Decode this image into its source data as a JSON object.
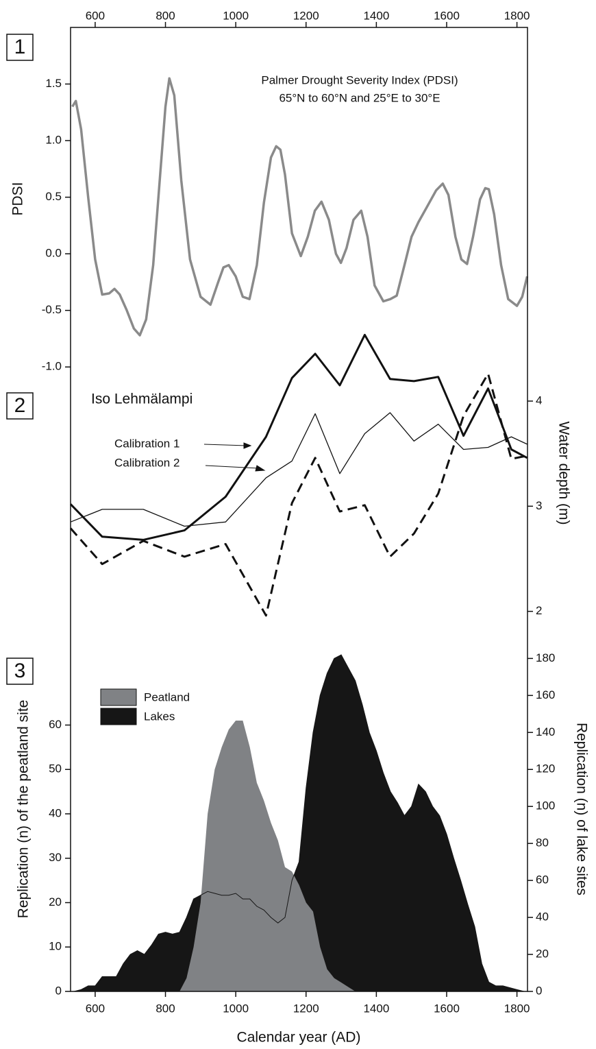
{
  "chart_data": [
    {
      "type": "line",
      "panel": "1",
      "title": [
        "Palmer Drought Severity Index (PDSI)",
        "65°N to 60°N and 25°E to 30°E"
      ],
      "ylabel": "PDSI",
      "color": "#8a8a8a",
      "linewidth": 3.5,
      "xaxis_position": "top",
      "xlim": [
        530,
        1830
      ],
      "xticks": [
        600,
        800,
        1000,
        1200,
        1400,
        1600,
        1800
      ],
      "ylim": [
        -1.15,
        2.0
      ],
      "yticks": [
        1.5,
        {
          "value": 1,
          "label": "1.0"
        },
        0.5,
        {
          "value": 0,
          "label": "0.0"
        },
        -0.5,
        {
          "value": -1,
          "label": "-1.0"
        }
      ],
      "x": [
        535,
        545,
        560,
        580,
        600,
        620,
        640,
        655,
        670,
        690,
        710,
        727,
        745,
        765,
        785,
        800,
        811,
        825,
        845,
        870,
        900,
        928,
        950,
        965,
        980,
        1000,
        1020,
        1039,
        1060,
        1080,
        1100,
        1115,
        1127,
        1140,
        1160,
        1185,
        1205,
        1225,
        1244,
        1265,
        1285,
        1299,
        1315,
        1335,
        1357,
        1375,
        1395,
        1420,
        1440,
        1458,
        1480,
        1500,
        1520,
        1545,
        1570,
        1589,
        1605,
        1625,
        1642,
        1658,
        1675,
        1695,
        1710,
        1720,
        1735,
        1755,
        1775,
        1800,
        1815,
        1829
      ],
      "values": [
        1.3,
        1.35,
        1.1,
        0.5,
        -0.05,
        -0.36,
        -0.35,
        -0.31,
        -0.36,
        -0.5,
        -0.66,
        -0.72,
        -0.58,
        -0.1,
        0.7,
        1.3,
        1.55,
        1.4,
        0.65,
        -0.05,
        -0.38,
        -0.45,
        -0.25,
        -0.12,
        -0.1,
        -0.2,
        -0.38,
        -0.4,
        -0.1,
        0.45,
        0.85,
        0.95,
        0.92,
        0.7,
        0.18,
        -0.02,
        0.15,
        0.38,
        0.46,
        0.3,
        0.0,
        -0.08,
        0.05,
        0.3,
        0.38,
        0.15,
        -0.28,
        -0.42,
        -0.4,
        -0.37,
        -0.1,
        0.15,
        0.28,
        0.42,
        0.56,
        0.62,
        0.52,
        0.15,
        -0.05,
        -0.09,
        0.15,
        0.48,
        0.58,
        0.57,
        0.35,
        -0.1,
        -0.4,
        -0.46,
        -0.38,
        -0.2
      ]
    },
    {
      "type": "line",
      "panel": "2",
      "title": "Iso Lehmälampi",
      "y2label": "Water depth (m)",
      "xlim": [
        530,
        1830
      ],
      "y2lim": [
        1.9,
        4.9
      ],
      "y2ticks": [
        2,
        3,
        4
      ],
      "x": [
        530,
        620,
        737,
        854,
        971,
        1086,
        1160,
        1226,
        1296,
        1367,
        1439,
        1507,
        1576,
        1648,
        1718,
        1784,
        1829
      ],
      "series": [
        {
          "name": "Calibration 1",
          "color": "#111111",
          "linewidth": 3,
          "axis": "y2",
          "values": [
            3.02,
            2.71,
            2.68,
            2.77,
            3.09,
            3.66,
            4.22,
            4.45,
            4.15,
            4.63,
            4.21,
            4.19,
            4.23,
            3.67,
            4.12,
            3.54,
            3.46
          ]
        },
        {
          "name": "Calibration 2",
          "color": "#111111",
          "linewidth": 1.3,
          "axis": "y2",
          "values": [
            2.85,
            2.97,
            2.97,
            2.81,
            2.85,
            3.27,
            3.43,
            3.88,
            3.31,
            3.69,
            3.89,
            3.62,
            3.78,
            3.54,
            3.56,
            3.66,
            3.59
          ]
        },
        {
          "color": "#111111",
          "linewidth": 3,
          "dash": true,
          "axis": "y2",
          "values": [
            2.79,
            2.45,
            2.67,
            2.52,
            2.64,
            1.96,
            3.03,
            3.46,
            2.95,
            3.01,
            2.52,
            2.74,
            3.12,
            3.86,
            4.26,
            3.45,
            3.48
          ]
        }
      ]
    },
    {
      "type": "area",
      "panel": "3",
      "xaxis_position": "bottom",
      "xlabel": "Calendar year (AD)",
      "ylabel": "Replication (n) of the peatland site",
      "y2label": "Replication (n) of lake sites",
      "xlim": [
        530,
        1830
      ],
      "xticks": [
        600,
        800,
        1000,
        1200,
        1400,
        1600,
        1800
      ],
      "ylim": [
        0,
        80
      ],
      "yticks": [
        0,
        10,
        20,
        30,
        40,
        50,
        60
      ],
      "y2lim": [
        0,
        192
      ],
      "y2ticks": [
        0,
        20,
        40,
        60,
        80,
        100,
        120,
        140,
        160,
        180
      ],
      "series": [
        {
          "name": "Lakes",
          "color": "#161616",
          "axis": "y2",
          "x": [
            540,
            560,
            580,
            600,
            620,
            640,
            660,
            680,
            700,
            720,
            740,
            760,
            780,
            800,
            820,
            840,
            860,
            880,
            900,
            920,
            940,
            960,
            980,
            1000,
            1020,
            1040,
            1060,
            1080,
            1100,
            1120,
            1140,
            1160,
            1180,
            1200,
            1220,
            1240,
            1260,
            1280,
            1300,
            1320,
            1340,
            1360,
            1380,
            1400,
            1420,
            1440,
            1460,
            1480,
            1500,
            1520,
            1540,
            1560,
            1580,
            1600,
            1620,
            1640,
            1660,
            1680,
            1700,
            1720,
            1740,
            1760,
            1780,
            1800,
            1820
          ],
          "values": [
            0,
            1,
            3,
            3,
            8,
            8,
            8,
            15,
            20,
            22,
            20,
            25,
            31,
            32,
            31,
            32,
            40,
            50,
            52,
            54,
            53,
            52,
            52,
            53,
            50,
            50,
            46,
            44,
            40,
            37,
            40,
            60,
            70,
            110,
            140,
            160,
            172,
            180,
            182,
            175,
            168,
            155,
            140,
            130,
            118,
            108,
            102,
            95,
            100,
            112,
            108,
            100,
            95,
            85,
            72,
            60,
            47,
            35,
            15,
            5,
            3,
            3,
            2,
            1,
            0
          ]
        },
        {
          "name": "Peatland",
          "color": "#808285",
          "x": [
            840,
            860,
            880,
            900,
            920,
            940,
            960,
            980,
            1000,
            1020,
            1040,
            1060,
            1080,
            1100,
            1120,
            1140,
            1160,
            1180,
            1200,
            1220,
            1240,
            1260,
            1280,
            1300,
            1320,
            1340
          ],
          "values": [
            0,
            3,
            10,
            20,
            40,
            50,
            55,
            59,
            61,
            61,
            55,
            47,
            43,
            38,
            34,
            28,
            27,
            24,
            20,
            18,
            10,
            5,
            3,
            2,
            1,
            0
          ]
        }
      ]
    }
  ]
}
